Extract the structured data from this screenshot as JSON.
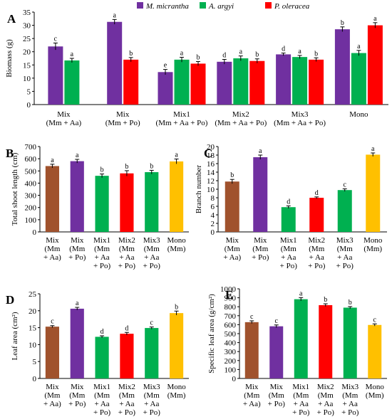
{
  "chart_data": [
    {
      "panel": "A",
      "type": "bar",
      "ylabel": "Biomass (g)",
      "ylim": [
        0,
        35
      ],
      "yticks": [
        0,
        5,
        10,
        15,
        20,
        25,
        30,
        35
      ],
      "categories": [
        [
          "Mix",
          "(Mm + Aa)"
        ],
        [
          "Mix",
          "(Mm + Po)"
        ],
        [
          "Mix1",
          "(Mm + Aa + Po)"
        ],
        [
          "Mix2",
          "(Mm + Aa + Po)"
        ],
        [
          "Mix3",
          "(Mm + Aa + Po)"
        ],
        [
          "Mono"
        ]
      ],
      "legend": [
        {
          "name": "M. micrantha",
          "color": "#7030a0"
        },
        {
          "name": "A. argyi",
          "color": "#00b050"
        },
        {
          "name": "P. oleracea",
          "color": "#ff0000"
        }
      ],
      "groups": [
        {
          "bars": [
            {
              "s": 0,
              "v": 22,
              "e": 1.3,
              "l": "c"
            },
            {
              "s": 1,
              "v": 16.7,
              "e": 0.8,
              "l": "a"
            }
          ]
        },
        {
          "bars": [
            {
              "s": 0,
              "v": 31.3,
              "e": 0.9,
              "l": "a"
            },
            {
              "s": 2,
              "v": 17,
              "e": 0.8,
              "l": "b"
            }
          ]
        },
        {
          "bars": [
            {
              "s": 0,
              "v": 12.3,
              "e": 1.0,
              "l": "e"
            },
            {
              "s": 1,
              "v": 17,
              "e": 0.9,
              "l": "a"
            },
            {
              "s": 2,
              "v": 15.5,
              "e": 0.8,
              "l": "b"
            }
          ]
        },
        {
          "bars": [
            {
              "s": 0,
              "v": 16.2,
              "e": 0.9,
              "l": "d"
            },
            {
              "s": 1,
              "v": 17.5,
              "e": 0.9,
              "l": "a"
            },
            {
              "s": 2,
              "v": 16.5,
              "e": 0.8,
              "l": "b"
            }
          ]
        },
        {
          "bars": [
            {
              "s": 0,
              "v": 19,
              "e": 0.5,
              "l": "d"
            },
            {
              "s": 1,
              "v": 18,
              "e": 0.6,
              "l": "a"
            },
            {
              "s": 2,
              "v": 17,
              "e": 0.7,
              "l": "b"
            }
          ]
        },
        {
          "bars": [
            {
              "s": 0,
              "v": 28.5,
              "e": 0.9,
              "l": "b"
            },
            {
              "s": 1,
              "v": 19.5,
              "e": 1.0,
              "l": "a"
            },
            {
              "s": 2,
              "v": 30,
              "e": 1.0,
              "l": "a"
            }
          ]
        }
      ]
    },
    {
      "panel": "B",
      "type": "bar",
      "ylabel": "Total shoot length (cm)",
      "ylim": [
        0,
        700
      ],
      "yticks": [
        0,
        100,
        200,
        300,
        400,
        500,
        600,
        700
      ],
      "categories": [
        [
          "Mix",
          "(Mm",
          "+ Aa)"
        ],
        [
          "Mix",
          "(Mm",
          "+ Po)"
        ],
        [
          "Mix1",
          "(Mm",
          "+ Aa",
          "+ Po)"
        ],
        [
          "Mix2",
          "(Mm",
          "+ Aa",
          "+ Po)"
        ],
        [
          "Mix3",
          "(Mm",
          "+ Aa",
          "+ Po)"
        ],
        [
          "Mono",
          "(Mm)"
        ]
      ],
      "values": [
        540,
        580,
        460,
        480,
        490,
        578
      ],
      "errors": [
        15,
        15,
        15,
        22,
        15,
        20
      ],
      "labels": [
        "a",
        "a",
        "b",
        "b",
        "b",
        "a"
      ],
      "colors": [
        "#a0522d",
        "#7030a0",
        "#00b050",
        "#ff0000",
        "#00b050",
        "#ffc000"
      ]
    },
    {
      "panel": "C",
      "type": "bar",
      "ylabel": "Branch number",
      "ylim": [
        0,
        20
      ],
      "yticks": [
        0,
        2,
        4,
        6,
        8,
        10,
        12,
        14,
        16,
        18,
        20
      ],
      "categories": [
        [
          "Mix",
          "(Mm",
          "+ Aa)"
        ],
        [
          "Mix",
          "(Mm",
          "+ Po)"
        ],
        [
          "Mix1",
          "(Mm",
          "+ Aa",
          "+ Po)"
        ],
        [
          "Mix2",
          "(Mm",
          "+ Aa",
          "+ Po)"
        ],
        [
          "Mix3",
          "(Mm",
          "+ Aa",
          "+ Po)"
        ],
        [
          "Mono",
          "(Mm)"
        ]
      ],
      "values": [
        11.8,
        17.5,
        5.8,
        8.0,
        9.8,
        18.1
      ],
      "errors": [
        0.5,
        0.5,
        0.3,
        0.2,
        0.3,
        0.4
      ],
      "labels": [
        "b",
        "a",
        "d",
        "d",
        "c",
        "a"
      ],
      "colors": [
        "#a0522d",
        "#7030a0",
        "#00b050",
        "#ff0000",
        "#00b050",
        "#ffc000"
      ]
    },
    {
      "panel": "D",
      "type": "bar",
      "ylabel": "Leaf area (cm²)",
      "ylim": [
        0,
        25
      ],
      "yticks": [
        0,
        5,
        10,
        15,
        20,
        25
      ],
      "categories": [
        [
          "Mix",
          "(Mm",
          "+ Aa)"
        ],
        [
          "Mix",
          "(Mm",
          "+ Po)"
        ],
        [
          "Mix1",
          "(Mm",
          "+ Aa",
          "+ Po)"
        ],
        [
          "Mix2",
          "(Mm",
          "+ Aa",
          "+ Po)"
        ],
        [
          "Mix3",
          "(Mm",
          "+ Aa",
          "+ Po)"
        ],
        [
          "Mono",
          "(Mm)"
        ]
      ],
      "values": [
        15.3,
        20.6,
        12.3,
        13.2,
        14.9,
        19.3
      ],
      "errors": [
        0.3,
        0.4,
        0.3,
        0.4,
        0.3,
        0.6
      ],
      "labels": [
        "c",
        "a",
        "d",
        "d",
        "c",
        "b"
      ],
      "colors": [
        "#a0522d",
        "#7030a0",
        "#00b050",
        "#ff0000",
        "#00b050",
        "#ffc000"
      ]
    },
    {
      "panel": "E",
      "type": "bar",
      "ylabel": "Specific leaf area (g/cm²)",
      "ylim": [
        0,
        1000
      ],
      "yticks": [
        0,
        100,
        200,
        300,
        400,
        500,
        600,
        700,
        800,
        900,
        1000
      ],
      "categories": [
        [
          "Mix",
          "(Mm",
          "+ Aa)"
        ],
        [
          "Mix",
          "(Mm",
          "+ Po)"
        ],
        [
          "Mix1",
          "(Mm",
          "+ Aa",
          "+ Po)"
        ],
        [
          "Mix2",
          "(Mm",
          "+ Aa",
          "+ Po)"
        ],
        [
          "Mix3",
          "(Mm",
          "+ Aa",
          "+ Po)"
        ],
        [
          "Mono",
          "(Mm)"
        ]
      ],
      "values": [
        628,
        582,
        884,
        818,
        790,
        597
      ],
      "errors": [
        15,
        15,
        18,
        15,
        12,
        12
      ],
      "labels": [
        "c",
        "c",
        "a",
        "b",
        "b",
        "c"
      ],
      "colors": [
        "#a0522d",
        "#7030a0",
        "#00b050",
        "#ff0000",
        "#00b050",
        "#ffc000"
      ]
    }
  ]
}
